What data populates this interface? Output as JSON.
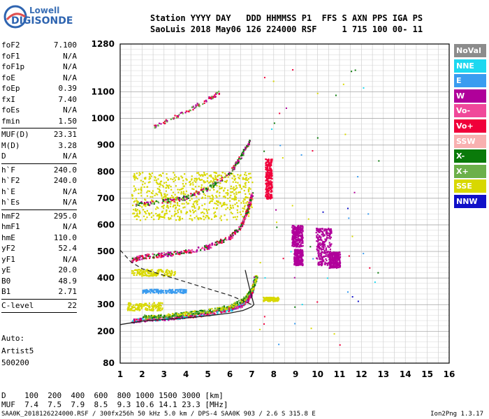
{
  "logo": {
    "line1": "Lowell",
    "line2": "DIGISONDE"
  },
  "header": {
    "line1": "Station YYYY DAY   DDD HHMMSS P1  FFS S AXN PPS IGA PS",
    "line2": "SaoLuis 2018 May06 126 224000 RSF     1 715 100 00- 11"
  },
  "params": [
    [
      {
        "k": "foF2",
        "v": "7.100"
      },
      {
        "k": "foF1",
        "v": "N/A"
      },
      {
        "k": "foF1p",
        "v": "N/A"
      },
      {
        "k": "foE",
        "v": "N/A"
      },
      {
        "k": "foEp",
        "v": "0.39"
      },
      {
        "k": "fxI",
        "v": "7.40"
      },
      {
        "k": "foEs",
        "v": "N/A"
      },
      {
        "k": "fmin",
        "v": "1.50"
      }
    ],
    [
      {
        "k": "MUF(D)",
        "v": "23.31"
      },
      {
        "k": "M(D)",
        "v": "3.28"
      },
      {
        "k": "D",
        "v": "N/A"
      }
    ],
    [
      {
        "k": "h`F",
        "v": "240.0"
      },
      {
        "k": "h`F2",
        "v": "240.0"
      },
      {
        "k": "h`E",
        "v": "N/A"
      },
      {
        "k": "h`Es",
        "v": "N/A"
      }
    ],
    [
      {
        "k": "hmF2",
        "v": "295.0"
      },
      {
        "k": "hmF1",
        "v": "N/A"
      },
      {
        "k": "hmE",
        "v": "110.0"
      },
      {
        "k": "yF2",
        "v": "52.4"
      },
      {
        "k": "yF1",
        "v": "N/A"
      },
      {
        "k": "yE",
        "v": "20.0"
      },
      {
        "k": "B0",
        "v": "48.9"
      },
      {
        "k": "B1",
        "v": "2.71"
      }
    ],
    [
      {
        "k": "C-level",
        "v": "22"
      }
    ]
  ],
  "auto": {
    "line1": "Auto:",
    "line2": "Artist5",
    "line3": "500200"
  },
  "dmuf": {
    "line1": "D    100  200  400  600  800 1000 1500 3000 [km]",
    "line2": "MUF  7.4  7.5  7.9  8.5  9.3 10.6 14.1 23.3 [MHz]"
  },
  "footer": {
    "text": "SAA0K_2018126224000.RSF / 300fx256h 50 kHz 5.0 km / DPS-4 SAA0K 903 / 2.6 S 315.8 E",
    "version": "Ion2Png 1.3.17"
  },
  "legend": [
    {
      "label": "NoVal",
      "color": "#8c8c8c"
    },
    {
      "label": "NNE",
      "color": "#1ed8f0"
    },
    {
      "label": "E",
      "color": "#3a9cf0"
    },
    {
      "label": "W",
      "color": "#b0009a"
    },
    {
      "label": "Vo-",
      "color": "#f0489a"
    },
    {
      "label": "Vo+",
      "color": "#f0003a"
    },
    {
      "label": "SSW",
      "color": "#f8b0b0"
    },
    {
      "label": "X-",
      "color": "#0a7a0a"
    },
    {
      "label": "X+",
      "color": "#6cb04a"
    },
    {
      "label": "SSE",
      "color": "#d8d800"
    },
    {
      "label": "NNW",
      "color": "#1010c8"
    }
  ],
  "chart_data": {
    "type": "scatter",
    "xlim": [
      1,
      16
    ],
    "ylim": [
      80,
      1280
    ],
    "x_ticks": [
      1,
      2,
      3,
      4,
      5,
      6,
      7,
      8,
      9,
      10,
      11,
      12,
      13,
      14,
      15,
      16
    ],
    "y_ticks": [
      80,
      200,
      300,
      400,
      500,
      600,
      700,
      800,
      900,
      1000,
      1100,
      1280
    ],
    "grid": true,
    "profile_solid": [
      [
        1.0,
        225
      ],
      [
        2,
        238
      ],
      [
        3,
        244
      ],
      [
        4,
        250
      ],
      [
        5,
        258
      ],
      [
        6,
        268
      ],
      [
        6.6,
        278
      ],
      [
        7.0,
        292
      ],
      [
        7.1,
        300
      ],
      [
        7.0,
        330
      ],
      [
        6.9,
        360
      ],
      [
        6.8,
        395
      ],
      [
        6.7,
        430
      ]
    ],
    "profile_dashed": [
      [
        1.0,
        505
      ],
      [
        1.5,
        460
      ],
      [
        2,
        435
      ],
      [
        3,
        410
      ],
      [
        4,
        385
      ],
      [
        5,
        360
      ],
      [
        6,
        335
      ],
      [
        6.6,
        315
      ],
      [
        7.0,
        300
      ]
    ],
    "trace_o_F": [
      [
        1.5,
        240
      ],
      [
        2,
        245
      ],
      [
        3,
        250
      ],
      [
        4,
        258
      ],
      [
        5,
        268
      ],
      [
        6,
        285
      ],
      [
        6.5,
        300
      ],
      [
        6.8,
        320
      ],
      [
        7.0,
        350
      ],
      [
        7.1,
        400
      ]
    ],
    "trace_o_F2_2": [
      [
        1.5,
        470
      ],
      [
        2,
        482
      ],
      [
        3,
        490
      ],
      [
        4,
        500
      ],
      [
        5,
        520
      ],
      [
        6,
        555
      ],
      [
        6.5,
        600
      ],
      [
        6.8,
        660
      ],
      [
        7.0,
        720
      ]
    ],
    "trace_3": [
      [
        1.7,
        680
      ],
      [
        3,
        690
      ],
      [
        4,
        705
      ],
      [
        5,
        740
      ],
      [
        6,
        800
      ],
      [
        6.5,
        860
      ],
      [
        6.9,
        920
      ]
    ],
    "trace_4": [
      [
        2.5,
        970
      ],
      [
        3,
        990
      ],
      [
        4,
        1030
      ],
      [
        5,
        1075
      ],
      [
        5.5,
        1100
      ]
    ],
    "x_trace": [
      [
        2.0,
        255
      ],
      [
        3,
        260
      ],
      [
        4,
        268
      ],
      [
        5,
        278
      ],
      [
        6,
        295
      ],
      [
        6.6,
        320
      ],
      [
        7.0,
        360
      ],
      [
        7.2,
        410
      ]
    ],
    "spread_clusters": [
      {
        "x": [
          7.6,
          7.9
        ],
        "y": [
          700,
          850
        ],
        "series": "Vo+"
      },
      {
        "x": [
          8.8,
          9.3
        ],
        "y": [
          520,
          600
        ],
        "series": "W"
      },
      {
        "x": [
          8.9,
          9.3
        ],
        "y": [
          450,
          510
        ],
        "series": "W"
      },
      {
        "x": [
          9.9,
          10.6
        ],
        "y": [
          450,
          590
        ],
        "series": "W"
      },
      {
        "x": [
          10.5,
          11.0
        ],
        "y": [
          440,
          500
        ],
        "series": "W"
      }
    ],
    "es_bands": [
      {
        "x": [
          1.3,
          2.9
        ],
        "y": [
          280,
          310
        ],
        "series": "SSE"
      },
      {
        "x": [
          2,
          4
        ],
        "y": [
          345,
          360
        ],
        "series": "E"
      },
      {
        "x": [
          1.5,
          3.5
        ],
        "y": [
          410,
          435
        ],
        "series": "SSE"
      },
      {
        "x": [
          1.5,
          7
        ],
        "y": [
          620,
          800
        ],
        "series": "SSE"
      },
      {
        "x": [
          7.5,
          8.2
        ],
        "y": [
          315,
          330
        ],
        "series": "SSE"
      }
    ]
  }
}
